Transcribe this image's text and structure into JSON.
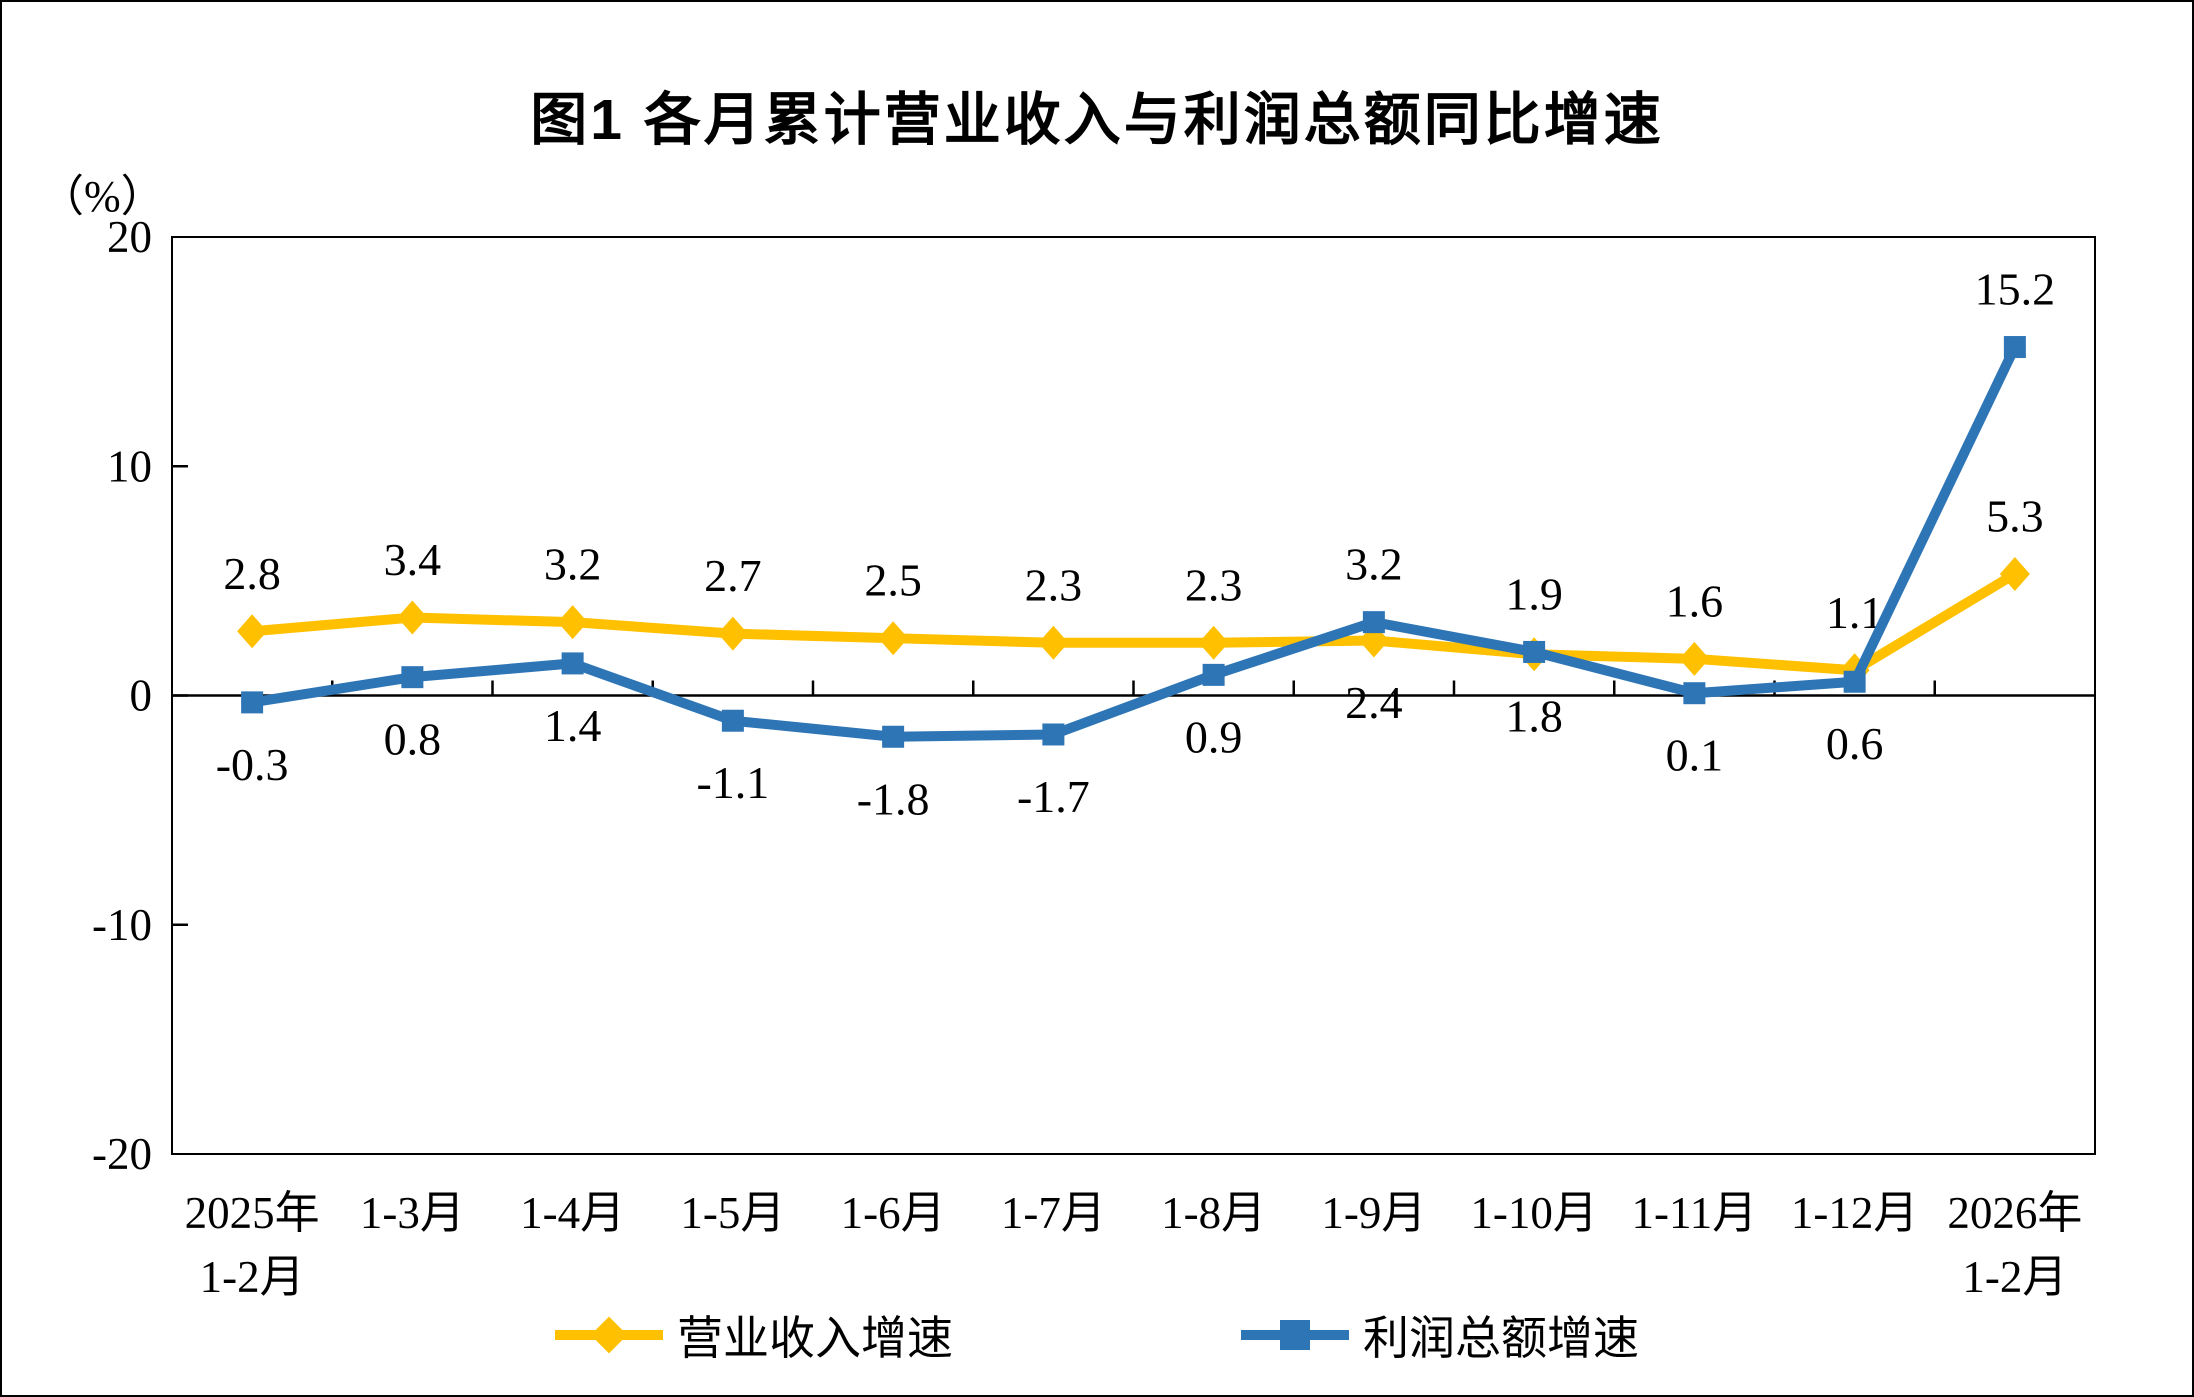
{
  "title": "图1  各月累计营业收入与利润总额同比增速",
  "unit_label": "（%）",
  "legend": [
    {
      "id": "revenue",
      "label": "营业收入增速",
      "color": "#FFC000",
      "marker": "diamond"
    },
    {
      "id": "profit",
      "label": "利润总额增速",
      "color": "#2E75B6",
      "marker": "square"
    }
  ],
  "chart_data": {
    "type": "line",
    "title": "图1  各月累计营业收入与利润总额同比增速",
    "y_unit": "（%）",
    "xlabel": "",
    "ylabel": "（%）",
    "ylim": [
      -20,
      20
    ],
    "yticks": [
      20,
      10,
      0,
      -10,
      -20
    ],
    "grid": false,
    "legend_position": "bottom",
    "categories": [
      [
        "2025年",
        "1-2月"
      ],
      [
        "1-3月"
      ],
      [
        "1-4月"
      ],
      [
        "1-5月"
      ],
      [
        "1-6月"
      ],
      [
        "1-7月"
      ],
      [
        "1-8月"
      ],
      [
        "1-9月"
      ],
      [
        "1-10月"
      ],
      [
        "1-11月"
      ],
      [
        "1-12月"
      ],
      [
        "2026年",
        "1-2月"
      ]
    ],
    "series": [
      {
        "id": "revenue",
        "name": "营业收入增速",
        "color": "#FFC000",
        "marker": "diamond",
        "values": [
          2.8,
          3.4,
          3.2,
          2.7,
          2.5,
          2.3,
          2.3,
          2.4,
          1.8,
          1.6,
          1.1,
          5.3
        ],
        "label_side": [
          "above",
          "above",
          "above",
          "above",
          "above",
          "above",
          "above",
          "below",
          "below",
          "above",
          "above",
          "above"
        ]
      },
      {
        "id": "profit",
        "name": "利润总额增速",
        "color": "#2E75B6",
        "marker": "square",
        "values": [
          -0.3,
          0.8,
          1.4,
          -1.1,
          -1.8,
          -1.7,
          0.9,
          3.2,
          1.9,
          0.1,
          0.6,
          15.2
        ],
        "label_side": [
          "below",
          "below",
          "below",
          "below",
          "below",
          "below",
          "below",
          "above",
          "above",
          "below",
          "below",
          "above"
        ]
      }
    ]
  }
}
